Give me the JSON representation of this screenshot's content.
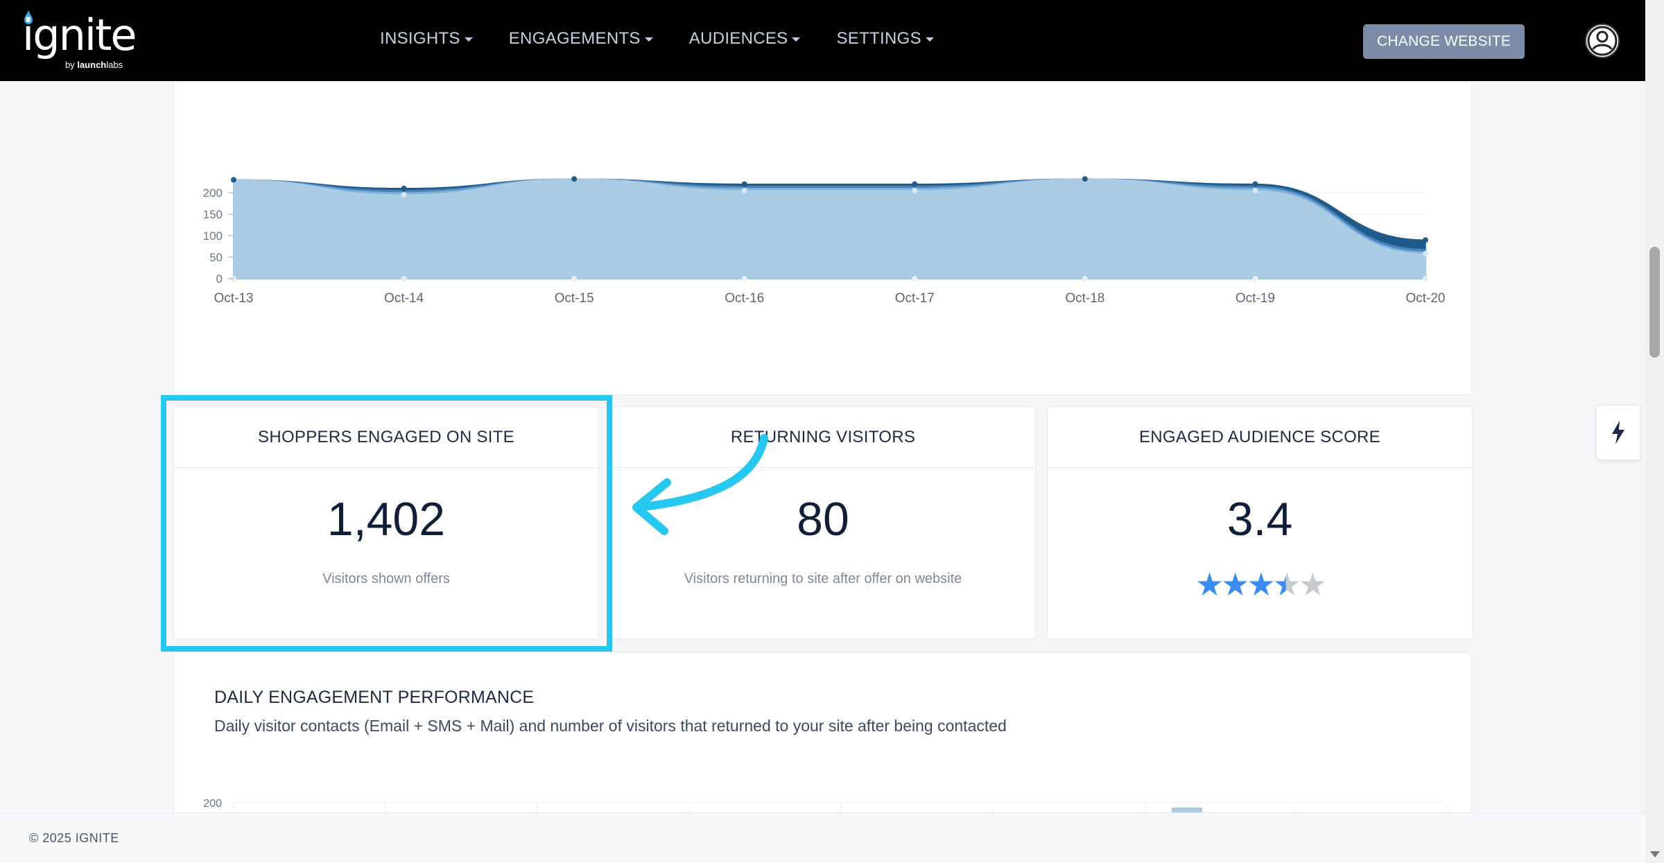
{
  "header": {
    "logo": {
      "word": "ignite",
      "by_prefix": "by ",
      "by_brand_bold": "launch",
      "by_brand_rest": "labs"
    },
    "nav": [
      {
        "label": "INSIGHTS"
      },
      {
        "label": "ENGAGEMENTS"
      },
      {
        "label": "AUDIENCES"
      },
      {
        "label": "SETTINGS"
      }
    ],
    "change_website_label": "CHANGE WEBSITE",
    "icons": {
      "avatar": "user-circle-icon",
      "nav_caret": "caret-down-icon"
    }
  },
  "chart_data": {
    "type": "area",
    "categories": [
      "Oct-13",
      "Oct-14",
      "Oct-15",
      "Oct-16",
      "Oct-17",
      "Oct-18",
      "Oct-19",
      "Oct-20"
    ],
    "y_ticks": [
      0,
      50,
      100,
      150,
      200
    ],
    "series": [
      {
        "values": [
          230,
          195,
          232,
          205,
          205,
          232,
          205,
          58
        ]
      },
      {
        "values": [
          230,
          200,
          232,
          210,
          210,
          232,
          210,
          62
        ]
      },
      {
        "values": [
          230,
          205,
          232,
          215,
          215,
          232,
          215,
          68
        ]
      },
      {
        "values": [
          230,
          210,
          232,
          220,
          220,
          232,
          220,
          90
        ]
      }
    ],
    "colors": [
      "#a9cbe4",
      "#7fb0d8",
      "#4a86be",
      "#1e5b8a"
    ],
    "grid": true
  },
  "stats": [
    {
      "title": "SHOPPERS ENGAGED ON SITE",
      "value": "1,402",
      "description": "Visitors shown offers",
      "highlighted": true
    },
    {
      "title": "RETURNING VISITORS",
      "value": "80",
      "description": "Visitors returning to site after offer on website"
    },
    {
      "title": "ENGAGED AUDIENCE SCORE",
      "value": "3.4",
      "rating": 3.4,
      "rating_max": 5
    }
  ],
  "annotation": {
    "highlight_color": "#27c8ef",
    "arrow_icon": "curved-arrow-left-icon"
  },
  "daily": {
    "title": "DAILY ENGAGEMENT PERFORMANCE",
    "subtitle": "Daily visitor contacts (Email + SMS + Mail) and number of visitors that returned to your site after being contacted",
    "y_tick_top": "200"
  },
  "footer": {
    "copyright": "© 2025 IGNITE"
  },
  "side_widget": {
    "icon": "lightning-bolt-icon"
  }
}
